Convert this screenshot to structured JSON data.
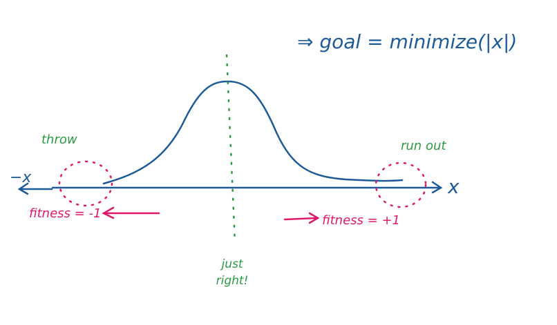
{
  "goal": "⇒ goal = minimize(|x|)",
  "axis": {
    "left_label": "−x",
    "right_label": "x"
  },
  "regions": [
    {
      "label": "throw",
      "fitness": "fitness = -1"
    },
    {
      "label": "run out",
      "fitness": "fitness = +1"
    }
  ],
  "center": {
    "label_lines": [
      "just",
      "right!"
    ]
  }
}
